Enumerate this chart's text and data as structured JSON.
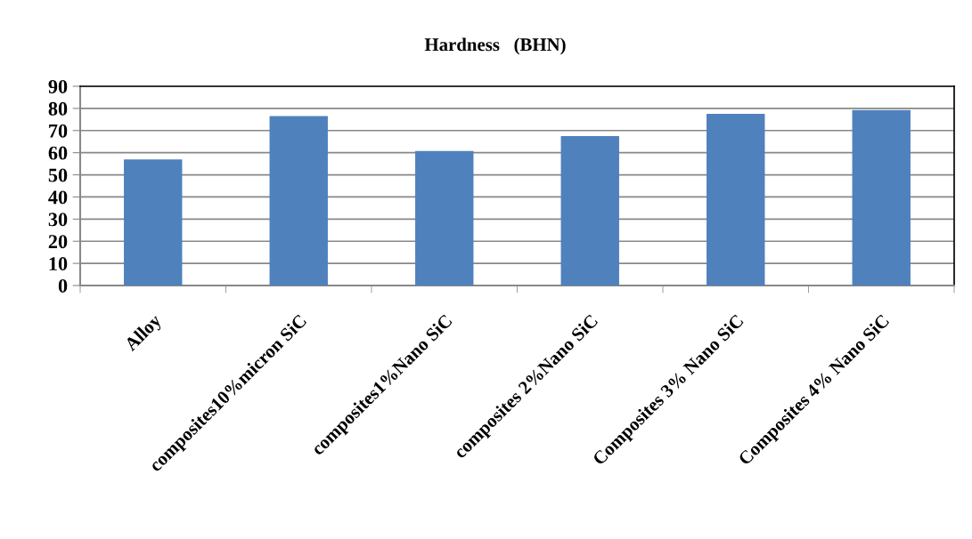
{
  "chart_data": {
    "type": "bar",
    "title": "Hardness   (BHN)",
    "categories": [
      "Alloy",
      "composites10%micron SiC",
      "composites1%Nano SiC",
      "composites 2%Nano SiC",
      "Composites 3% Nano SiC",
      "Composites 4% Nano SiC"
    ],
    "values": [
      57,
      76.5,
      60.8,
      67.5,
      77.5,
      79.3
    ],
    "color": "#4f81bd",
    "ylim": [
      0,
      90
    ],
    "yticks": [
      0,
      10,
      20,
      30,
      40,
      50,
      60,
      70,
      80,
      90
    ],
    "grid": "y",
    "legend": false
  }
}
